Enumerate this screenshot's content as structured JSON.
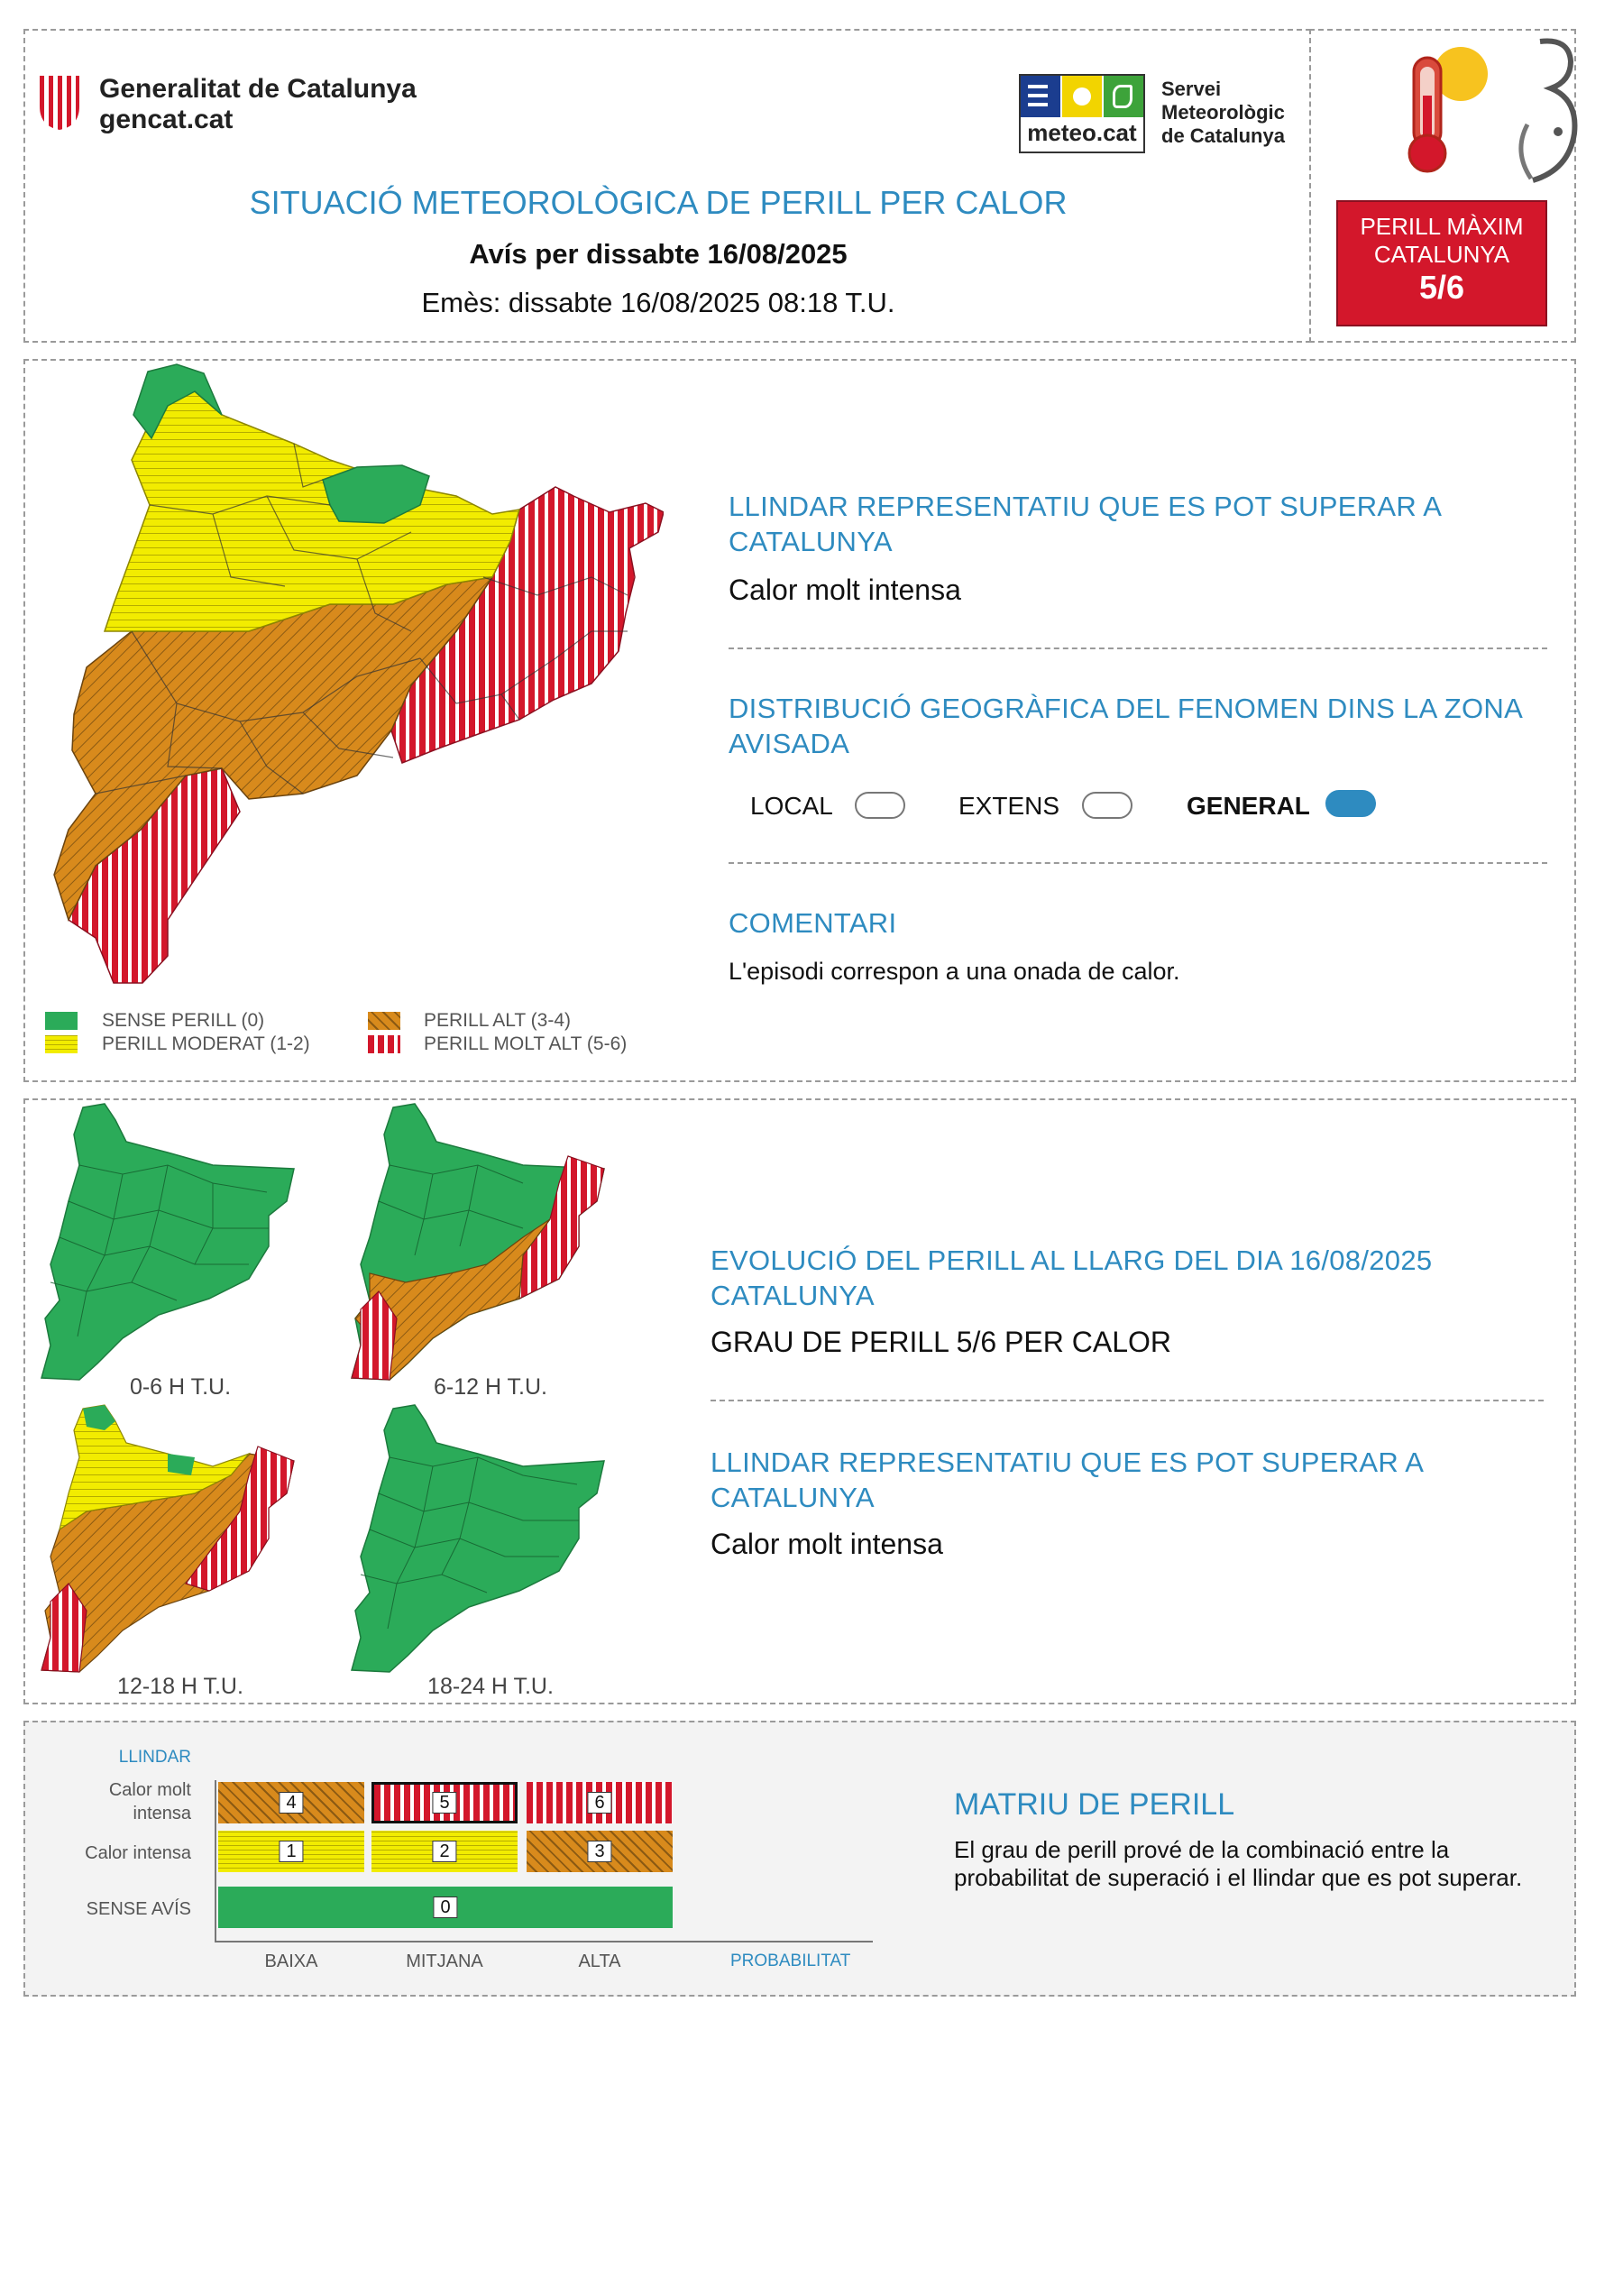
{
  "header": {
    "generalitat_line1": "Generalitat de Catalunya",
    "generalitat_line2": "gencat.cat",
    "meteocat_logo_text": "meteo.cat",
    "smc_line1": "Servei",
    "smc_line2": "Meteorològic",
    "smc_line3": "de Catalunya",
    "title": "SITUACIÓ METEOROLÒGICA DE PERILL PER CALOR",
    "warning_date": "Avís per dissabte 16/08/2025",
    "issued": "Emès: dissabte 16/08/2025 08:18 T.U.",
    "max_danger_line1": "PERILL MÀXIM",
    "max_danger_line2": "CATALUNYA",
    "max_danger_value": "5/6"
  },
  "main_panel": {
    "threshold_title": "LLINDAR REPRESENTATIU QUE ES POT SUPERAR A CATALUNYA",
    "threshold_value": "Calor molt intensa",
    "distribution_title": "DISTRIBUCIÓ GEOGRÀFICA DEL FENOMEN DINS LA ZONA AVISADA",
    "distribution_options": [
      {
        "label": "LOCAL",
        "selected": false
      },
      {
        "label": "EXTENS",
        "selected": false
      },
      {
        "label": "GENERAL",
        "selected": true
      }
    ],
    "comment_title": "COMENTARI",
    "comment_text": "L'episodi correspon a una onada de calor.",
    "legend": [
      {
        "label": "SENSE PERILL (0)",
        "swatch": "green"
      },
      {
        "label": "PERILL ALT (3-4)",
        "swatch": "orange"
      },
      {
        "label": "PERILL MODERAT (1-2)",
        "swatch": "yellow"
      },
      {
        "label": "PERILL MOLT ALT (5-6)",
        "swatch": "red"
      }
    ]
  },
  "evolution_panel": {
    "periods": [
      "0-6 H T.U.",
      "6-12 H T.U.",
      "12-18 H T.U.",
      "18-24 H T.U."
    ],
    "evolution_title": "EVOLUCIÓ DEL PERILL AL LLARG DEL DIA 16/08/2025 CATALUNYA",
    "evolution_value": "GRAU DE PERILL 5/6 PER CALOR",
    "threshold_title": "LLINDAR REPRESENTATIU QUE ES POT SUPERAR A CATALUNYA",
    "threshold_value": "Calor molt intensa"
  },
  "matrix_panel": {
    "y_axis_title": "LLINDAR",
    "rows": [
      "Calor molt intensa",
      "Calor intensa",
      "SENSE AVÍS"
    ],
    "cells_row1": [
      "4",
      "5",
      "6"
    ],
    "cells_row2": [
      "1",
      "2",
      "3"
    ],
    "cell_row3": "0",
    "x_labels": [
      "BAIXA",
      "MITJANA",
      "ALTA"
    ],
    "x_axis_title": "PROBABILITAT",
    "title": "MATRIU DE PERILL",
    "description": "El grau de perill prové de la combinació entre la probabilitat de superació i el llindar que es pot superar."
  },
  "colors": {
    "accent_blue": "#2e8bc0",
    "danger_red": "#d3172b",
    "safe_green": "#2bab59",
    "moderate_yellow": "#f2ec00",
    "high_orange": "#d88a1c"
  }
}
